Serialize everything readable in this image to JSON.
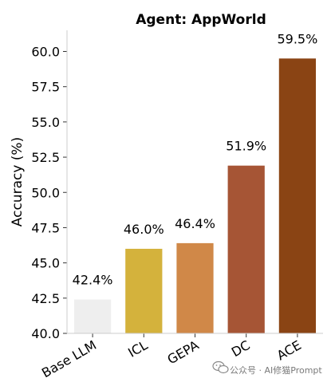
{
  "chart_data": {
    "type": "bar",
    "title": "Agent: AppWorld",
    "ylabel": "Accuracy (%)",
    "xlabel": "",
    "categories": [
      "Base LLM",
      "ICL",
      "GEPA",
      "DC",
      "ACE"
    ],
    "values": [
      42.4,
      46.0,
      46.4,
      51.9,
      59.5
    ],
    "value_labels": [
      "42.4%",
      "46.0%",
      "46.4%",
      "51.9%",
      "59.5%"
    ],
    "colors": [
      "#eeeeee",
      "#d4b23c",
      "#d08848",
      "#a65535",
      "#8a4414"
    ],
    "ylim": [
      40.0,
      61.5
    ],
    "yticks": [
      40.0,
      42.5,
      45.0,
      47.5,
      50.0,
      52.5,
      55.0,
      57.5,
      60.0
    ],
    "ytick_labels": [
      "40.0",
      "42.5",
      "45.0",
      "47.5",
      "50.0",
      "52.5",
      "55.0",
      "57.5",
      "60.0"
    ],
    "grid": false,
    "legend": "none"
  },
  "watermark": {
    "text": "公众号 · AI修猫Prompt",
    "icon": "wechat-icon"
  }
}
